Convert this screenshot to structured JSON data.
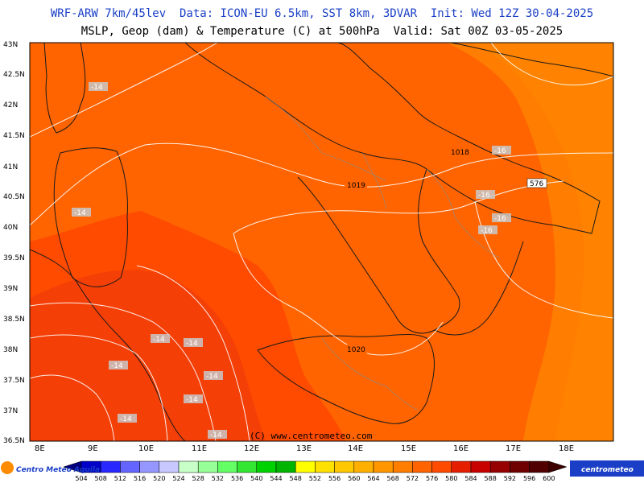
{
  "header": {
    "line1": "WRF-ARW 7km/45lev  Data: ICON-EU 6.5km, SST 8km, 3DVAR  Init: Wed 12Z 30-04-2025",
    "line2": "MSLP, Geop (dam) & Temperature (C) at 500hPa  Valid: Sat 00Z 03-05-2025"
  },
  "axes": {
    "lat_labels": [
      "43N",
      "42.5N",
      "42N",
      "41.5N",
      "41N",
      "40.5N",
      "40N",
      "39.5N",
      "39N",
      "38.5N",
      "38N",
      "37.5N",
      "37N",
      "36.5N"
    ],
    "lon_labels": [
      "8E",
      "9E",
      "10E",
      "11E",
      "12E",
      "13E",
      "14E",
      "15E",
      "16E",
      "17E",
      "18E"
    ]
  },
  "isobar_labels": [
    "1018",
    "1019",
    "1020"
  ],
  "geopotential_labels": [
    "576"
  ],
  "temperature_labels": [
    "-14",
    "-14",
    "-14",
    "-14",
    "-14",
    "-14",
    "-14",
    "-14",
    "-14",
    "-16",
    "-16",
    "-16",
    "-16"
  ],
  "copyright": "(C) www.centrometeo.com",
  "legend": {
    "values": [
      "504",
      "508",
      "512",
      "516",
      "520",
      "524",
      "528",
      "532",
      "536",
      "540",
      "544",
      "548",
      "552",
      "556",
      "560",
      "564",
      "568",
      "572",
      "576",
      "580",
      "584",
      "588",
      "592",
      "596",
      "600"
    ],
    "colors": [
      "#00007f",
      "#0000c8",
      "#2828ff",
      "#6464ff",
      "#9696ff",
      "#c8c8ff",
      "#c8ffc8",
      "#96ff96",
      "#64ff64",
      "#32e632",
      "#00d200",
      "#00b400",
      "#ffff00",
      "#ffe100",
      "#ffc800",
      "#ffaf00",
      "#ff9600",
      "#ff7d00",
      "#ff6400",
      "#ff4b00",
      "#e61e00",
      "#c80000",
      "#960000",
      "#6e0000",
      "#500000",
      "#3c0000"
    ]
  },
  "logos": {
    "left": "Centro Meteo Aquila",
    "right": "centrometeo"
  }
}
